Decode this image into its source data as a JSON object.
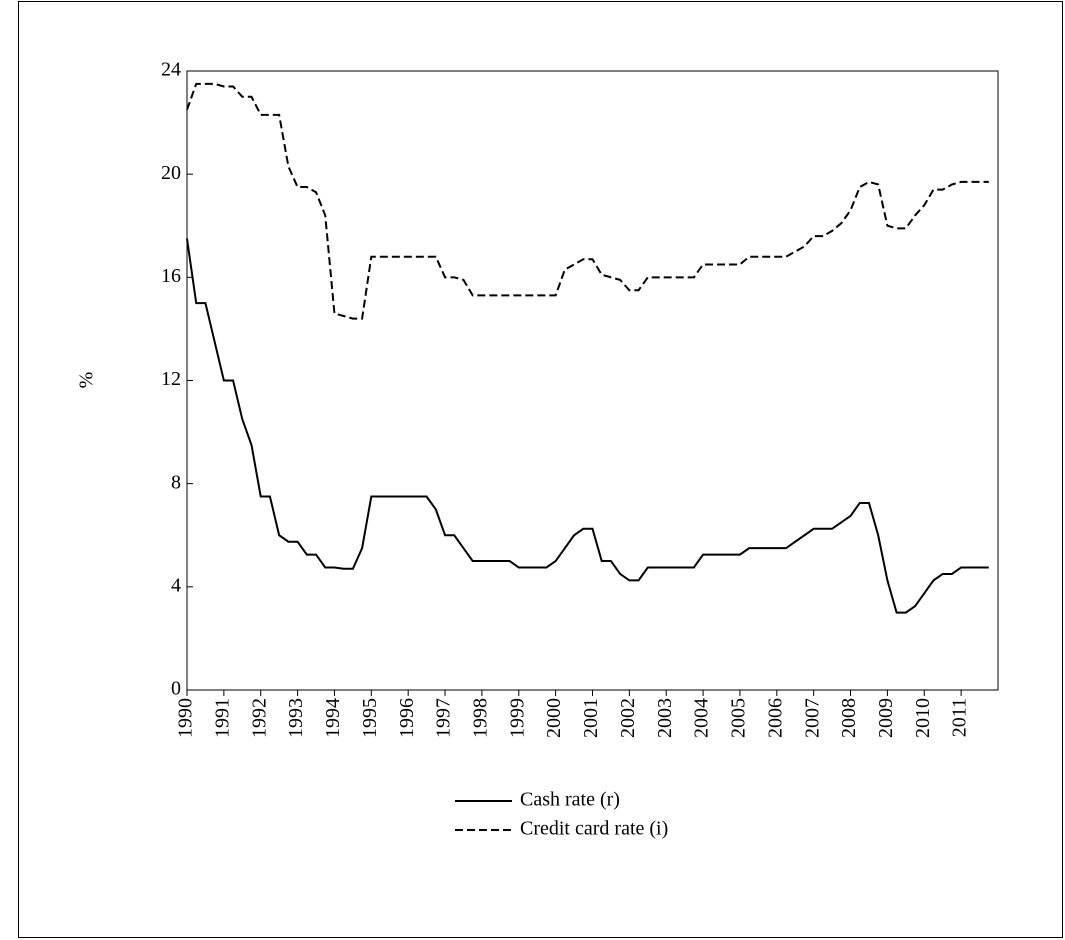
{
  "chart_data": {
    "type": "line",
    "y_label": "%",
    "x": [
      1990,
      1990.25,
      1990.5,
      1990.75,
      1991,
      1991.25,
      1991.5,
      1991.75,
      1992,
      1992.25,
      1992.5,
      1992.75,
      1993,
      1993.25,
      1993.5,
      1993.75,
      1994,
      1994.25,
      1994.5,
      1994.75,
      1995,
      1995.25,
      1995.5,
      1995.75,
      1996,
      1996.25,
      1996.5,
      1996.75,
      1997,
      1997.25,
      1997.5,
      1997.75,
      1998,
      1998.25,
      1998.5,
      1998.75,
      1999,
      1999.25,
      1999.5,
      1999.75,
      2000,
      2000.25,
      2000.5,
      2000.75,
      2001,
      2001.25,
      2001.5,
      2001.75,
      2002,
      2002.25,
      2002.5,
      2002.75,
      2003,
      2003.25,
      2003.5,
      2003.75,
      2004,
      2004.25,
      2004.5,
      2004.75,
      2005,
      2005.25,
      2005.5,
      2005.75,
      2006,
      2006.25,
      2006.5,
      2006.75,
      2007,
      2007.25,
      2007.5,
      2007.75,
      2008,
      2008.25,
      2008.5,
      2008.75,
      2009,
      2009.25,
      2009.5,
      2009.75,
      2010,
      2010.25,
      2010.5,
      2010.75,
      2011,
      2011.25,
      2011.5,
      2011.75
    ],
    "series": [
      {
        "name": "Cash rate (r)",
        "color": "#000000",
        "dash": "solid",
        "values": [
          17.5,
          15.0,
          15.0,
          13.5,
          12.0,
          12.0,
          10.5,
          9.5,
          7.5,
          7.5,
          6.0,
          5.75,
          5.75,
          5.25,
          5.25,
          4.75,
          4.75,
          4.7,
          4.7,
          5.5,
          7.5,
          7.5,
          7.5,
          7.5,
          7.5,
          7.5,
          7.5,
          7.0,
          6.0,
          6.0,
          5.5,
          5.0,
          5.0,
          5.0,
          5.0,
          5.0,
          4.75,
          4.75,
          4.75,
          4.75,
          5.0,
          5.5,
          6.0,
          6.25,
          6.25,
          5.0,
          5.0,
          4.5,
          4.25,
          4.25,
          4.75,
          4.75,
          4.75,
          4.75,
          4.75,
          4.75,
          5.25,
          5.25,
          5.25,
          5.25,
          5.25,
          5.5,
          5.5,
          5.5,
          5.5,
          5.5,
          5.75,
          6.0,
          6.25,
          6.25,
          6.25,
          6.5,
          6.75,
          7.25,
          7.25,
          6.0,
          4.25,
          3.0,
          3.0,
          3.25,
          3.75,
          4.25,
          4.5,
          4.5,
          4.75,
          4.75,
          4.75,
          4.75
        ]
      },
      {
        "name": "Credit card rate (i)",
        "color": "#000000",
        "dash": "dashed",
        "values": [
          22.5,
          23.5,
          23.5,
          23.5,
          23.4,
          23.4,
          23.0,
          23.0,
          22.3,
          22.3,
          22.3,
          20.3,
          19.5,
          19.5,
          19.3,
          18.4,
          14.6,
          14.5,
          14.4,
          14.4,
          16.8,
          16.8,
          16.8,
          16.8,
          16.8,
          16.8,
          16.8,
          16.8,
          16.0,
          16.0,
          15.9,
          15.3,
          15.3,
          15.3,
          15.3,
          15.3,
          15.3,
          15.3,
          15.3,
          15.3,
          15.3,
          16.3,
          16.5,
          16.7,
          16.7,
          16.1,
          16.0,
          15.9,
          15.5,
          15.5,
          16.0,
          16.0,
          16.0,
          16.0,
          16.0,
          16.0,
          16.5,
          16.5,
          16.5,
          16.5,
          16.5,
          16.8,
          16.8,
          16.8,
          16.8,
          16.8,
          17.0,
          17.2,
          17.6,
          17.6,
          17.8,
          18.1,
          18.6,
          19.5,
          19.7,
          19.6,
          18.0,
          17.9,
          17.9,
          18.4,
          18.8,
          19.4,
          19.4,
          19.6,
          19.7,
          19.7,
          19.7,
          19.7
        ]
      }
    ],
    "xlim": [
      1990,
      2012
    ],
    "xticks": [
      1990,
      1991,
      1992,
      1993,
      1994,
      1995,
      1996,
      1997,
      1998,
      1999,
      2000,
      2001,
      2002,
      2003,
      2004,
      2005,
      2006,
      2007,
      2008,
      2009,
      2010,
      2011
    ],
    "ylim": [
      0,
      24
    ],
    "yticks": [
      0,
      4,
      8,
      12,
      16,
      20,
      24
    ]
  }
}
